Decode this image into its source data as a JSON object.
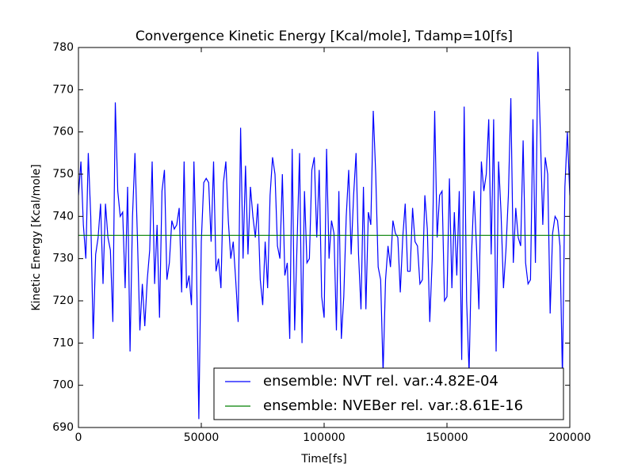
{
  "chart_data": {
    "type": "line",
    "title": "Convergence Kinetic Energy [Kcal/mole], Tdamp=10[fs]",
    "xlabel": "Time[fs]",
    "ylabel": "Kinetic Energy [Kcal/mole]",
    "xlim": [
      0,
      200000
    ],
    "ylim": [
      690,
      780
    ],
    "xticks": [
      0,
      50000,
      100000,
      150000,
      200000
    ],
    "yticks": [
      690,
      700,
      710,
      720,
      730,
      740,
      750,
      760,
      770,
      780
    ],
    "legend": "lower right",
    "x": [
      0,
      1000,
      2000,
      3000,
      4000,
      5000,
      6000,
      7000,
      8000,
      9000,
      10000,
      11000,
      12000,
      13000,
      14000,
      15000,
      16000,
      17000,
      18000,
      19000,
      20000,
      21000,
      22000,
      23000,
      24000,
      25000,
      26000,
      27000,
      28000,
      29000,
      30000,
      31000,
      32000,
      33000,
      34000,
      35000,
      36000,
      37000,
      38000,
      39000,
      40000,
      41000,
      42000,
      43000,
      44000,
      45000,
      46000,
      47000,
      48000,
      49000,
      50000,
      51000,
      52000,
      53000,
      54000,
      55000,
      56000,
      57000,
      58000,
      59000,
      60000,
      61000,
      62000,
      63000,
      64000,
      65000,
      66000,
      67000,
      68000,
      69000,
      70000,
      71000,
      72000,
      73000,
      74000,
      75000,
      76000,
      77000,
      78000,
      79000,
      80000,
      81000,
      82000,
      83000,
      84000,
      85000,
      86000,
      87000,
      88000,
      89000,
      90000,
      91000,
      92000,
      93000,
      94000,
      95000,
      96000,
      97000,
      98000,
      99000,
      100000,
      101000,
      102000,
      103000,
      104000,
      105000,
      106000,
      107000,
      108000,
      109000,
      110000,
      111000,
      112000,
      113000,
      114000,
      115000,
      116000,
      117000,
      118000,
      119000,
      120000,
      121000,
      122000,
      123000,
      124000,
      125000,
      126000,
      127000,
      128000,
      129000,
      130000,
      131000,
      132000,
      133000,
      134000,
      135000,
      136000,
      137000,
      138000,
      139000,
      140000,
      141000,
      142000,
      143000,
      144000,
      145000,
      146000,
      147000,
      148000,
      149000,
      150000,
      151000,
      152000,
      153000,
      154000,
      155000,
      156000,
      157000,
      158000,
      159000,
      160000,
      161000,
      162000,
      163000,
      164000,
      165000,
      166000,
      167000,
      168000,
      169000,
      170000,
      171000,
      172000,
      173000,
      174000,
      175000,
      176000,
      177000,
      178000,
      179000,
      180000,
      181000,
      182000,
      183000,
      184000,
      185000,
      186000,
      187000,
      188000,
      189000,
      190000,
      191000,
      192000,
      193000,
      194000,
      195000,
      196000,
      197000,
      198000,
      199000,
      200000
    ],
    "series": [
      {
        "name": "ensemble: NVT rel. var.:4.82E-04",
        "color": "#0000ff",
        "values": [
          745,
          753,
          738,
          730,
          755,
          740,
          711,
          731,
          735,
          743,
          724,
          743,
          735,
          732,
          715,
          767,
          746,
          740,
          741,
          723,
          747,
          708,
          740,
          755,
          735,
          713,
          724,
          714,
          725,
          732,
          753,
          724,
          738,
          716,
          746,
          751,
          725,
          729,
          739,
          737,
          738,
          742,
          722,
          753,
          723,
          726,
          719,
          753,
          730,
          692,
          734,
          748,
          749,
          748,
          734,
          753,
          727,
          730,
          723,
          748,
          753,
          739,
          730,
          734,
          725,
          715,
          761,
          730,
          752,
          731,
          747,
          740,
          735,
          743,
          725,
          719,
          734,
          723,
          745,
          754,
          750,
          733,
          730,
          750,
          726,
          729,
          711,
          756,
          713,
          734,
          755,
          710,
          746,
          729,
          730,
          751,
          754,
          735,
          751,
          721,
          716,
          756,
          730,
          739,
          736,
          713,
          746,
          711,
          721,
          740,
          751,
          731,
          745,
          755,
          731,
          718,
          747,
          718,
          741,
          738,
          765,
          750,
          728,
          725,
          703,
          725,
          733,
          728,
          739,
          736,
          735,
          722,
          735,
          743,
          727,
          727,
          742,
          734,
          733,
          724,
          725,
          745,
          737,
          715,
          730,
          765,
          735,
          745,
          746,
          720,
          721,
          749,
          723,
          741,
          726,
          746,
          706,
          766,
          720,
          703,
          731,
          746,
          733,
          718,
          753,
          746,
          750,
          763,
          731,
          763,
          708,
          753,
          741,
          723,
          732,
          745,
          768,
          729,
          742,
          735,
          733,
          758,
          729,
          724,
          725,
          763,
          729,
          779,
          760,
          738,
          754,
          750,
          717,
          736,
          740,
          739,
          733,
          702,
          747,
          760,
          745
        ]
      },
      {
        "name": "ensemble: NVEBer rel. var.:8.61E-16",
        "color": "#008000",
        "x": [
          0,
          200000
        ],
        "values": [
          735.5,
          735.5
        ]
      }
    ]
  }
}
